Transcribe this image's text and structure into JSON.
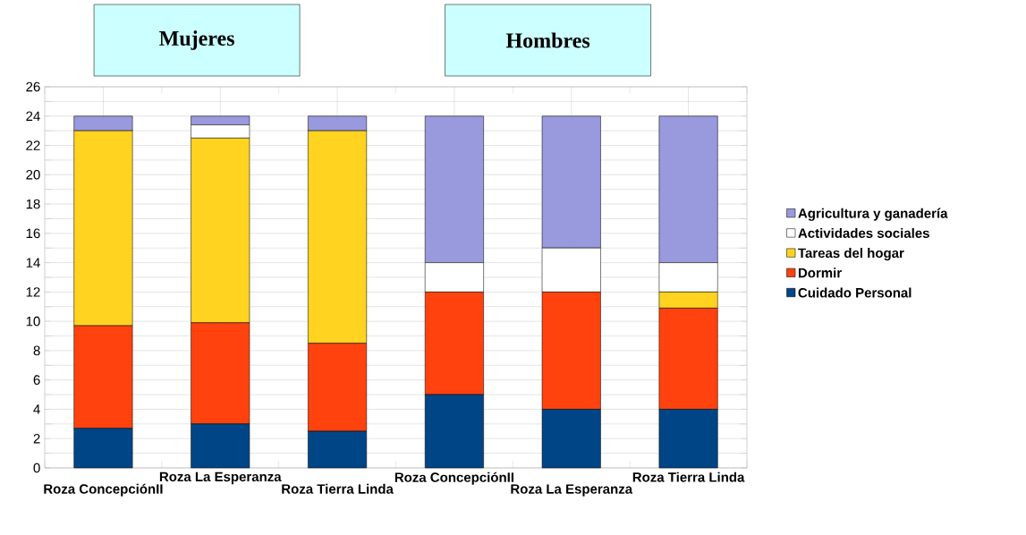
{
  "chart_data": {
    "type": "bar",
    "stacked": true,
    "categories": [
      "Roza ConcepciónII",
      "Roza La Esperanza",
      "Roza Tierra Linda",
      "Roza ConcepciónII",
      "Roza La Esperanza",
      "Roza Tierra Linda"
    ],
    "series": [
      {
        "name": "Cuidado Personal",
        "color": "#004586",
        "values": [
          2.7,
          3.0,
          2.5,
          5,
          4,
          4
        ]
      },
      {
        "name": "Dormir",
        "color": "#ff420e",
        "values": [
          7.0,
          6.9,
          6.0,
          7,
          8,
          6.9
        ]
      },
      {
        "name": "Tareas del hogar",
        "color": "#ffd320",
        "values": [
          13.3,
          12.6,
          14.5,
          0,
          0,
          1.1
        ]
      },
      {
        "name": "Actividades sociales",
        "color": "#ffffff",
        "values": [
          0,
          0.9,
          0,
          2,
          3,
          2
        ]
      },
      {
        "name": "Agricultura y ganadería",
        "color": "#9999dd",
        "values": [
          1.0,
          0.6,
          1.0,
          10,
          9,
          10
        ]
      }
    ],
    "ylim": [
      0,
      26
    ],
    "yticks": [
      0,
      2,
      4,
      6,
      8,
      10,
      12,
      14,
      16,
      18,
      20,
      22,
      24,
      26
    ],
    "grid": true,
    "legend": "right",
    "annotations": [
      "Mujeres",
      "Hombres"
    ]
  }
}
